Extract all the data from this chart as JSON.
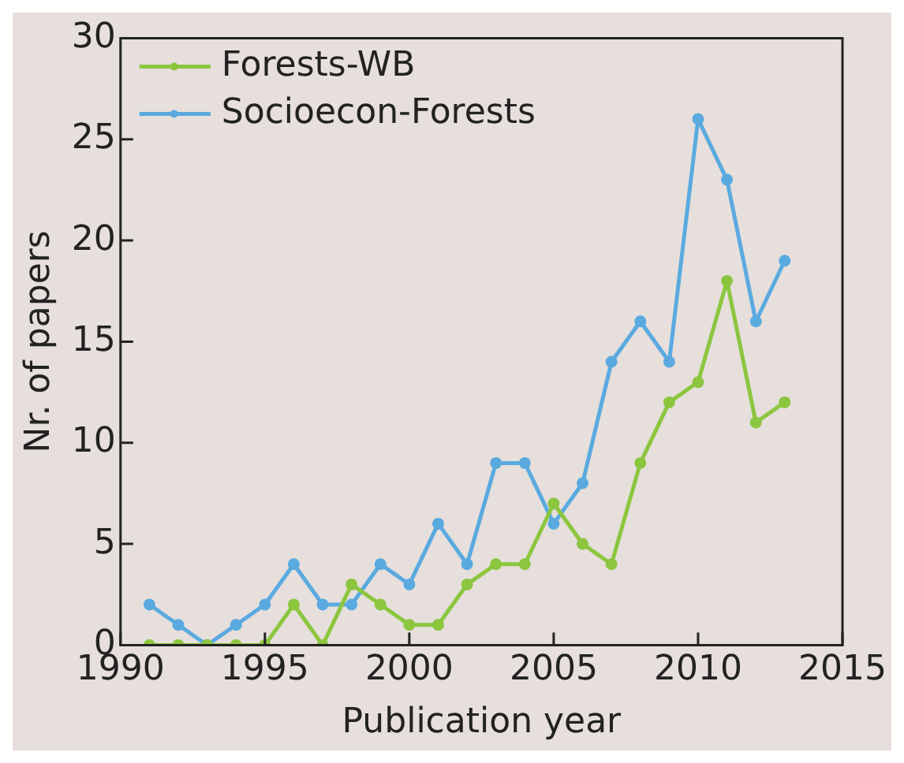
{
  "chart_data": {
    "type": "line",
    "xlabel": "Publication year",
    "ylabel": "Nr. of papers",
    "x": [
      1991,
      1992,
      1993,
      1994,
      1995,
      1996,
      1997,
      1998,
      1999,
      2000,
      2001,
      2002,
      2003,
      2004,
      2005,
      2006,
      2007,
      2008,
      2009,
      2010,
      2011,
      2012,
      2013
    ],
    "series": [
      {
        "name": "Forests-WB",
        "color": "#8cc63f",
        "values": [
          0,
          0,
          0,
          0,
          0,
          2,
          0,
          3,
          2,
          1,
          1,
          3,
          4,
          4,
          7,
          5,
          4,
          9,
          12,
          13,
          18,
          11,
          12
        ]
      },
      {
        "name": "Socioecon-Forests",
        "color": "#5aaae0",
        "values": [
          2,
          1,
          0,
          1,
          2,
          4,
          2,
          2,
          4,
          3,
          6,
          4,
          9,
          9,
          6,
          8,
          14,
          16,
          14,
          26,
          23,
          16,
          19
        ]
      }
    ],
    "xlim": [
      1990,
      2015
    ],
    "xticks": [
      1990,
      1995,
      2000,
      2005,
      2010,
      2015
    ],
    "ylim": [
      0,
      30
    ],
    "yticks": [
      0,
      5,
      10,
      15,
      20,
      25,
      30
    ],
    "grid": false,
    "legend": "top left",
    "marker": "circle",
    "line_style": "solid"
  }
}
